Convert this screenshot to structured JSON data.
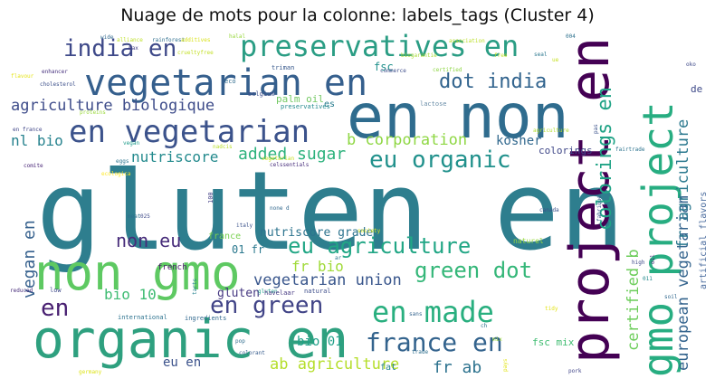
{
  "title": "Nuage de mots pour la colonne: labels_tags (Cluster 4)",
  "words": [
    {
      "text": "gluten en",
      "color": "#2e7e8e"
    },
    {
      "text": "en non",
      "color": "#2f6c8e"
    },
    {
      "text": "project en",
      "color": "#440154"
    },
    {
      "text": "gmo project",
      "color": "#27ad81"
    },
    {
      "text": "organic en",
      "color": "#2ea07f"
    },
    {
      "text": "non gmo",
      "color": "#5ec962"
    },
    {
      "text": "vegetarian en",
      "color": "#355f8d"
    },
    {
      "text": "preservatives en",
      "color": "#2a9d84"
    },
    {
      "text": "en vegetarian",
      "color": "#3b528b"
    },
    {
      "text": "india en",
      "color": "#3e4989"
    },
    {
      "text": "dot india",
      "color": "#32648e"
    },
    {
      "text": "eu organic",
      "color": "#21918c"
    },
    {
      "text": "agriculture biologique",
      "color": "#3e4c8a"
    },
    {
      "text": "colorings en",
      "color": "#20a386"
    },
    {
      "text": "b corporation",
      "color": "#8fd744"
    },
    {
      "text": "nl bio",
      "color": "#26828e"
    },
    {
      "text": "nutriscore",
      "color": "#238a8d"
    },
    {
      "text": "added sugar",
      "color": "#2db27d"
    },
    {
      "text": "kosher",
      "color": "#31688e"
    },
    {
      "text": "eu agriculture",
      "color": "#21a685"
    },
    {
      "text": "vegan en",
      "color": "#35608d"
    },
    {
      "text": "non eu",
      "color": "#472c7a"
    },
    {
      "text": "green dot",
      "color": "#35b779"
    },
    {
      "text": "vegetarian union",
      "color": "#39568c"
    },
    {
      "text": "nutriscore grade",
      "color": "#2c738e"
    },
    {
      "text": "fr bio",
      "color": "#a0da39"
    },
    {
      "text": "01 fr",
      "color": "#2a788e"
    },
    {
      "text": "en made",
      "color": "#29af7f"
    },
    {
      "text": "france en",
      "color": "#33638d"
    },
    {
      "text": "en green",
      "color": "#414487"
    },
    {
      "text": "en",
      "color": "#481f71"
    },
    {
      "text": "bio 10",
      "color": "#3fbc73"
    },
    {
      "text": "gluten",
      "color": "#453781"
    },
    {
      "text": "bio 01",
      "color": "#1fa088"
    },
    {
      "text": "eu en",
      "color": "#3b528b"
    },
    {
      "text": "ab agriculture",
      "color": "#b5de2b"
    },
    {
      "text": "fr ab",
      "color": "#2c728e"
    },
    {
      "text": "certified b",
      "color": "#6ccd5a"
    },
    {
      "text": "european vegetarian",
      "color": "#33638d"
    },
    {
      "text": "fr agriculture",
      "color": "#2a788e"
    },
    {
      "text": "artificial flavors",
      "color": "#4e6fa0"
    },
    {
      "text": "colorings",
      "color": "#3f4788"
    },
    {
      "text": "fsc mix",
      "color": "#40bd72"
    },
    {
      "text": "fsc",
      "color": "#21918c"
    },
    {
      "text": "palm oil",
      "color": "#74c964"
    },
    {
      "text": "de",
      "color": "#3e4a89"
    },
    {
      "text": "es",
      "color": "#287c8e"
    },
    {
      "text": "eco",
      "color": "#2f6b8e"
    },
    {
      "text": "triman",
      "color": "#38598c"
    },
    {
      "text": "belgium",
      "color": "#3d4e8a"
    },
    {
      "text": "preservatives",
      "color": "#23898e"
    },
    {
      "text": "lactose",
      "color": "#6b8ea8"
    },
    {
      "text": "rainforest",
      "color": "#2e6e8e"
    },
    {
      "text": "alliance",
      "color": "#bddf26"
    },
    {
      "text": "halal",
      "color": "#98d83e"
    },
    {
      "text": "additives",
      "color": "#d8e219"
    },
    {
      "text": "crueltyfree",
      "color": "#c2df23"
    },
    {
      "text": "enhancer",
      "color": "#46307e"
    },
    {
      "text": "flavour",
      "color": "#e5e419"
    },
    {
      "text": "cholesterol",
      "color": "#3c4f8a"
    },
    {
      "text": "en france",
      "color": "#404688"
    },
    {
      "text": "proteins",
      "color": "#9bd93c"
    },
    {
      "text": "comite",
      "color": "#482576"
    },
    {
      "text": "vegan",
      "color": "#1e9b8a"
    },
    {
      "text": "eggs",
      "color": "#2b758e"
    },
    {
      "text": "nadcis",
      "color": "#b8de29"
    },
    {
      "text": "ecologica",
      "color": "#fde725"
    },
    {
      "text": "vegetarian",
      "color": "#c8e020"
    },
    {
      "text": "celssentials",
      "color": "#472d7b"
    },
    {
      "text": "meat",
      "color": "#2d708e"
    },
    {
      "text": "025",
      "color": "#3e4989"
    },
    {
      "text": "100",
      "color": "#424086"
    },
    {
      "text": "italy",
      "color": "#3b528b"
    },
    {
      "text": "none d",
      "color": "#31688e"
    },
    {
      "text": "france",
      "color": "#7ad151"
    },
    {
      "text": "french",
      "color": "#48186a"
    },
    {
      "text": "gluten",
      "color": "#1f9e89"
    },
    {
      "text": "low",
      "color": "#3e4a89"
    },
    {
      "text": "reduced",
      "color": "#472c7a"
    },
    {
      "text": "international",
      "color": "#2c728e"
    },
    {
      "text": "ingredients",
      "color": "#31688e"
    },
    {
      "text": "tarts",
      "color": "#26828e"
    },
    {
      "text": "havelaar",
      "color": "#453882"
    },
    {
      "text": "natural",
      "color": "#3d4d8a"
    },
    {
      "text": "pop",
      "color": "#2f6c8e"
    },
    {
      "text": "colorant",
      "color": "#365c8d"
    },
    {
      "text": "trade",
      "color": "#2e6f8e"
    },
    {
      "text": "fat",
      "color": "#25848e"
    },
    {
      "text": "germany",
      "color": "#dde318"
    },
    {
      "text": "canada",
      "color": "#3b528b"
    },
    {
      "text": "ar",
      "color": "#2a788e"
    },
    {
      "text": "naturel",
      "color": "#97d83f"
    },
    {
      "text": "society",
      "color": "#d2e21b"
    },
    {
      "text": "high",
      "color": "#3e4989"
    },
    {
      "text": "011",
      "color": "#238a8d"
    },
    {
      "text": "soil",
      "color": "#31688e"
    },
    {
      "text": "pork",
      "color": "#404588"
    },
    {
      "text": "pas",
      "color": "#3b528b"
    },
    {
      "text": "fabrique",
      "color": "#375a8c"
    },
    {
      "text": "fairtrade",
      "color": "#2c738e"
    },
    {
      "text": "oko",
      "color": "#3e4989"
    },
    {
      "text": "oil",
      "color": "#482677"
    },
    {
      "text": "004",
      "color": "#2d718e"
    },
    {
      "text": "agriculture",
      "color": "#b2dd2d"
    },
    {
      "text": "pays",
      "color": "#e2e418"
    },
    {
      "text": "wide",
      "color": "#31688e"
    },
    {
      "text": "max",
      "color": "#433e85"
    },
    {
      "text": "biogarantie",
      "color": "#a8db34"
    },
    {
      "text": "commerce",
      "color": "#3d4d8a"
    },
    {
      "text": "free",
      "color": "#c0df25"
    },
    {
      "text": "mix",
      "color": "#9dd93b"
    },
    {
      "text": "ch",
      "color": "#2c738e"
    },
    {
      "text": "sans",
      "color": "#33638d"
    },
    {
      "text": "tidy",
      "color": "#e3e418"
    },
    {
      "text": "association",
      "color": "#bade28"
    },
    {
      "text": "certified",
      "color": "#8ed645"
    },
    {
      "text": "ue",
      "color": "#c5e021"
    },
    {
      "text": "seal",
      "color": "#2a778e"
    }
  ]
}
